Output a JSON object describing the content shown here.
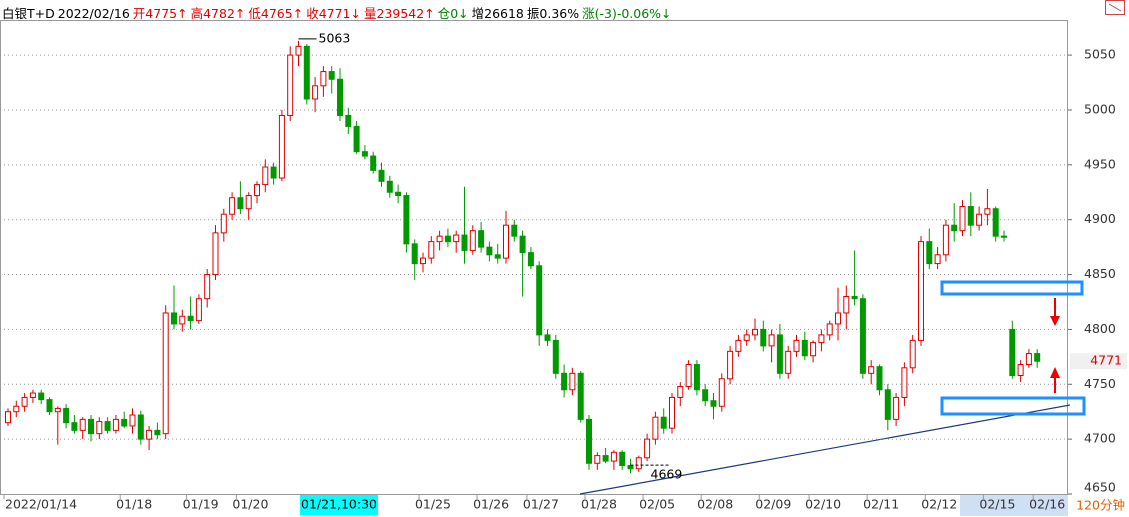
{
  "header": [
    {
      "text": "白银T+D",
      "color": "#000000"
    },
    {
      "text": "2022/02/16",
      "color": "#000000"
    },
    {
      "text": "开4775↑",
      "color": "#e00000"
    },
    {
      "text": "高4782↑",
      "color": "#e00000"
    },
    {
      "text": "低4765↑",
      "color": "#e00000"
    },
    {
      "text": "收4771↓",
      "color": "#e00000"
    },
    {
      "text": "量239542↑",
      "color": "#e00000"
    },
    {
      "text": "仓0↓",
      "color": "#008000"
    },
    {
      "text": "增26618",
      "color": "#000000"
    },
    {
      "text": "振0.36%",
      "color": "#000000"
    },
    {
      "text": "涨(-3)-0.06%↓",
      "color": "#008000"
    }
  ],
  "cursor_label": "01/21,10:30",
  "period": "120分钟",
  "chart_data": {
    "type": "candlestick",
    "up_color": "#e00000",
    "down_color": "#009900",
    "grid": true,
    "ylim": [
      4650,
      5082
    ],
    "yticks": [
      4650,
      4700,
      4750,
      4800,
      4850,
      4900,
      4950,
      5000,
      5050
    ],
    "categories": [
      "2022/01/14",
      null,
      null,
      null,
      null,
      null,
      null,
      null,
      null,
      null,
      null,
      null,
      null,
      null,
      "01/18",
      null,
      null,
      null,
      null,
      null,
      null,
      null,
      "01/19",
      null,
      null,
      null,
      null,
      null,
      "01/20",
      null,
      null,
      null,
      null,
      null,
      null,
      null,
      null,
      null,
      null,
      null,
      null,
      null,
      null,
      null,
      null,
      null,
      null,
      null,
      null,
      null,
      "01/25",
      null,
      null,
      null,
      null,
      null,
      null,
      "01/26",
      null,
      null,
      null,
      null,
      null,
      "01/27",
      null,
      null,
      null,
      null,
      null,
      null,
      "01/28",
      null,
      null,
      null,
      null,
      null,
      null,
      "02/05",
      null,
      null,
      null,
      null,
      null,
      null,
      "02/08",
      null,
      null,
      null,
      null,
      null,
      null,
      "02/09",
      null,
      null,
      null,
      null,
      null,
      "02/10",
      null,
      null,
      null,
      null,
      null,
      null,
      "02/11",
      null,
      null,
      null,
      null,
      null,
      null,
      "02/12",
      null,
      null,
      null,
      null,
      null,
      null,
      "02/15",
      null,
      null,
      null,
      null,
      null,
      "02/16"
    ],
    "open": [
      4715,
      4725,
      4730,
      4738,
      4742,
      4736,
      4725,
      4728,
      4715,
      4708,
      4718,
      4705,
      4716,
      4708,
      4718,
      4712,
      4722,
      4700,
      4708,
      4705,
      4815,
      4805,
      4812,
      4808,
      4828,
      4850,
      4888,
      4905,
      4920,
      4910,
      4922,
      4932,
      4948,
      4938,
      4995,
      5050,
      5058,
      5010,
      5022,
      5035,
      5028,
      4995,
      4985,
      4962,
      4958,
      4945,
      4935,
      4925,
      4922,
      4878,
      4860,
      4865,
      4880,
      4885,
      4880,
      4886,
      4872,
      4890,
      4875,
      4868,
      4865,
      4895,
      4885,
      4870,
      4858,
      4795,
      4790,
      4760,
      4745,
      4760,
      4718,
      4678,
      4685,
      4680,
      4688,
      4676,
      4673,
      4683,
      4700,
      4720,
      4710,
      4738,
      4748,
      4768,
      4745,
      4735,
      4730,
      4755,
      4780,
      4790,
      4795,
      4800,
      4785,
      4795,
      4760,
      4780,
      4790,
      4776,
      4788,
      4795,
      4805,
      4815,
      4830,
      4828,
      4760,
      4766,
      4745,
      4718,
      4738,
      4765,
      4790,
      4880,
      4860,
      4868,
      4895,
      4890,
      4912,
      4895,
      4905,
      4910,
      4885,
      4800,
      4758,
      4768,
      4778
    ],
    "high": [
      4728,
      4735,
      4742,
      4745,
      4745,
      4738,
      4730,
      4732,
      4722,
      4720,
      4722,
      4720,
      4720,
      4722,
      4725,
      4728,
      4726,
      4712,
      4715,
      4822,
      4840,
      4818,
      4830,
      4832,
      4855,
      4895,
      4910,
      4925,
      4935,
      4925,
      4935,
      4955,
      4952,
      5000,
      5058,
      5063,
      5060,
      5030,
      5040,
      5040,
      5038,
      5002,
      4990,
      4968,
      4962,
      4952,
      4940,
      4932,
      4925,
      4882,
      4870,
      4885,
      4890,
      4892,
      4890,
      4930,
      4895,
      4898,
      4880,
      4878,
      4908,
      4900,
      4890,
      4875,
      4862,
      4800,
      4795,
      4768,
      4765,
      4762,
      4722,
      4688,
      4692,
      4690,
      4690,
      4682,
      4685,
      4705,
      4725,
      4728,
      4742,
      4752,
      4772,
      4772,
      4750,
      4742,
      4760,
      4785,
      4795,
      4800,
      4810,
      4808,
      4800,
      4805,
      4785,
      4795,
      4798,
      4790,
      4800,
      4808,
      4838,
      4840,
      4872,
      4832,
      4772,
      4768,
      4750,
      4742,
      4770,
      4795,
      4885,
      4892,
      4875,
      4900,
      4915,
      4918,
      4925,
      4912,
      4928,
      4912,
      4890,
      4808,
      4772,
      4782,
      4782
    ],
    "low": [
      4712,
      4720,
      4725,
      4733,
      4732,
      4722,
      4695,
      4710,
      4705,
      4700,
      4698,
      4700,
      4705,
      4705,
      4710,
      4705,
      4695,
      4690,
      4700,
      4700,
      4800,
      4798,
      4800,
      4805,
      4820,
      4845,
      4880,
      4900,
      4905,
      4900,
      4915,
      4925,
      4932,
      4935,
      4990,
      5040,
      5005,
      4998,
      5012,
      5015,
      4990,
      4978,
      4960,
      4955,
      4942,
      4930,
      4920,
      4915,
      4870,
      4845,
      4852,
      4860,
      4872,
      4875,
      4870,
      4860,
      4868,
      4870,
      4862,
      4860,
      4860,
      4880,
      4830,
      4855,
      4785,
      4785,
      4755,
      4738,
      4740,
      4715,
      4672,
      4672,
      4678,
      4672,
      4672,
      4669,
      4670,
      4680,
      4695,
      4705,
      4705,
      4730,
      4745,
      4740,
      4730,
      4718,
      4725,
      4750,
      4775,
      4785,
      4790,
      4780,
      4770,
      4755,
      4755,
      4775,
      4772,
      4770,
      4780,
      4790,
      4790,
      4800,
      4822,
      4755,
      4750,
      4740,
      4708,
      4712,
      4730,
      4760,
      4785,
      4855,
      4855,
      4862,
      4880,
      4885,
      4885,
      4890,
      4895,
      4880,
      4880,
      4755,
      4752,
      4765,
      4765
    ],
    "close": [
      4725,
      4730,
      4738,
      4742,
      4736,
      4725,
      4728,
      4715,
      4708,
      4718,
      4705,
      4716,
      4708,
      4718,
      4712,
      4722,
      4700,
      4708,
      4704,
      4815,
      4805,
      4812,
      4808,
      4828,
      4850,
      4888,
      4905,
      4920,
      4910,
      4922,
      4932,
      4948,
      4938,
      4995,
      5050,
      5058,
      5010,
      5022,
      5035,
      5028,
      4995,
      4985,
      4962,
      4958,
      4945,
      4935,
      4925,
      4922,
      4878,
      4860,
      4865,
      4880,
      4885,
      4880,
      4886,
      4872,
      4890,
      4875,
      4868,
      4865,
      4895,
      4885,
      4870,
      4858,
      4795,
      4790,
      4760,
      4745,
      4760,
      4718,
      4678,
      4685,
      4680,
      4688,
      4676,
      4673,
      4683,
      4700,
      4720,
      4710,
      4738,
      4748,
      4768,
      4745,
      4735,
      4730,
      4755,
      4780,
      4790,
      4795,
      4800,
      4785,
      4795,
      4760,
      4780,
      4790,
      4776,
      4788,
      4795,
      4805,
      4815,
      4830,
      4828,
      4760,
      4766,
      4745,
      4718,
      4738,
      4765,
      4790,
      4880,
      4860,
      4868,
      4895,
      4890,
      4912,
      4895,
      4905,
      4910,
      4885,
      4884,
      4758,
      4768,
      4778,
      4771
    ]
  }
}
